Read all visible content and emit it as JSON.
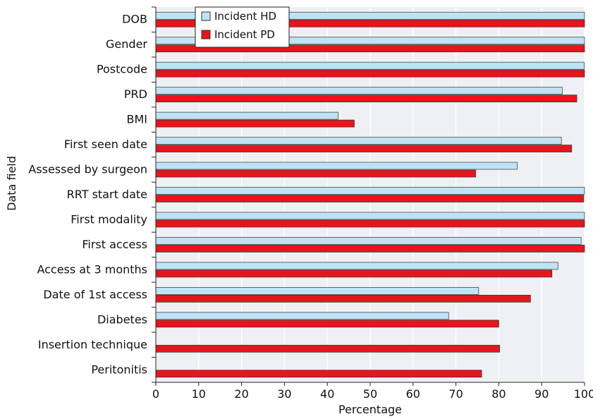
{
  "chart_data": {
    "type": "bar",
    "orientation": "horizontal",
    "xlabel": "Percentage",
    "ylabel": "Data field",
    "xlim": [
      0,
      100
    ],
    "xticks": [
      0,
      10,
      20,
      30,
      40,
      50,
      60,
      70,
      80,
      90,
      100
    ],
    "grid": "vertical",
    "legend_position": "top-left",
    "categories": [
      "DOB",
      "Gender",
      "Postcode",
      "PRD",
      "BMI",
      "First seen date",
      "Assessed by surgeon",
      "RRT start date",
      "First modality",
      "First access",
      "Access at 3 months",
      "Date of 1st access",
      "Diabetes",
      "Insertion technique",
      "Peritonitis"
    ],
    "series": [
      {
        "name": "Incident HD",
        "color": "#bfe3f5",
        "values": [
          100,
          100,
          99.9,
          94.8,
          42.5,
          94.6,
          84.3,
          100,
          100,
          99.2,
          93.8,
          75.3,
          68.3,
          null,
          null
        ]
      },
      {
        "name": "Incident PD",
        "color": "#e8141b",
        "values": [
          100,
          100,
          100,
          98.2,
          46.3,
          97.0,
          74.6,
          99.8,
          100,
          100,
          92.4,
          87.4,
          80.0,
          80.2,
          76.0
        ]
      }
    ]
  }
}
